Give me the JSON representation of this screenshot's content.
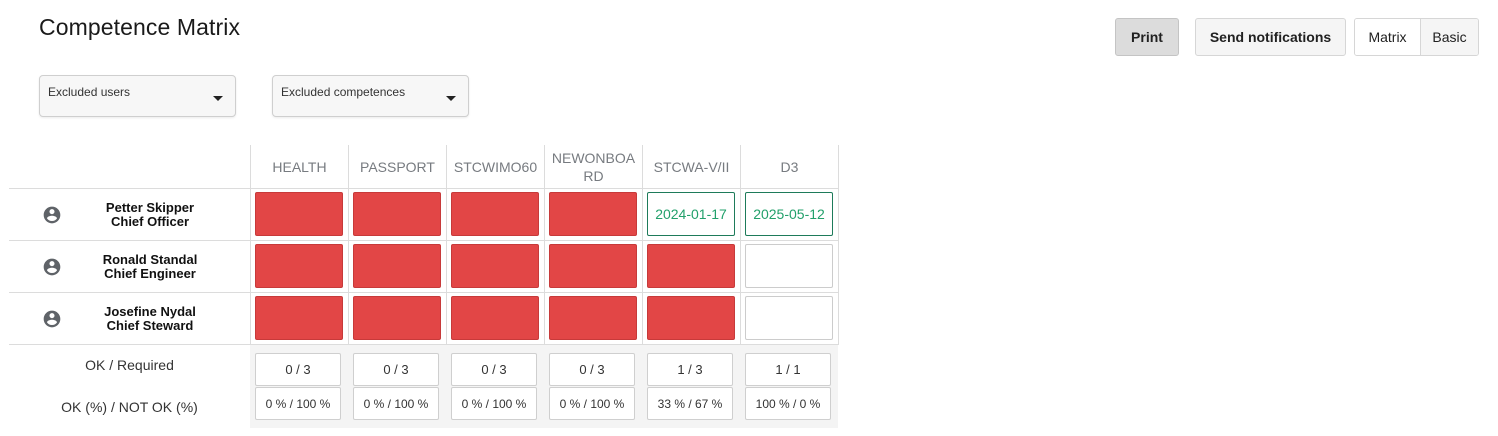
{
  "page": {
    "title": "Competence Matrix"
  },
  "toolbar": {
    "print_label": "Print",
    "send_label": "Send notifications",
    "view_matrix": "Matrix",
    "view_basic": "Basic"
  },
  "filters": {
    "excluded_users": "Excluded users",
    "excluded_competences": "Excluded competences"
  },
  "columns": [
    "HEALTH",
    "PASSPORT",
    "STCWIMO60",
    "NEWONBOARD",
    "STCWA-V/II",
    "D3"
  ],
  "users": [
    {
      "name": "Petter Skipper",
      "role": "Chief Officer",
      "cells": [
        {
          "status": "missing",
          "text": ""
        },
        {
          "status": "missing",
          "text": ""
        },
        {
          "status": "missing",
          "text": ""
        },
        {
          "status": "missing",
          "text": ""
        },
        {
          "status": "ok",
          "text": "2024-01-17"
        },
        {
          "status": "ok",
          "text": "2025-05-12"
        }
      ]
    },
    {
      "name": "Ronald Standal",
      "role": "Chief Engineer",
      "cells": [
        {
          "status": "missing",
          "text": ""
        },
        {
          "status": "missing",
          "text": ""
        },
        {
          "status": "missing",
          "text": ""
        },
        {
          "status": "missing",
          "text": ""
        },
        {
          "status": "missing",
          "text": ""
        },
        {
          "status": "not_required",
          "text": ""
        }
      ]
    },
    {
      "name": "Josefine Nydal",
      "role": "Chief Steward",
      "cells": [
        {
          "status": "missing",
          "text": ""
        },
        {
          "status": "missing",
          "text": ""
        },
        {
          "status": "missing",
          "text": ""
        },
        {
          "status": "missing",
          "text": ""
        },
        {
          "status": "missing",
          "text": ""
        },
        {
          "status": "not_required",
          "text": ""
        }
      ]
    }
  ],
  "summary": {
    "ok_required_label": "OK / Required",
    "pct_label": "OK (%) / NOT OK (%)",
    "ok_required": [
      "0 / 3",
      "0 / 3",
      "0 / 3",
      "0 / 3",
      "1 / 3",
      "1 / 1"
    ],
    "pct": [
      "0 % / 100 %",
      "0 % / 100 %",
      "0 % / 100 %",
      "0 % / 100 %",
      "33 % / 67 %",
      "100 % / 0 %"
    ]
  },
  "colors": {
    "missing": "#e24646",
    "ok_border": "#1e7b5a",
    "ok_text": "#22a06b"
  },
  "icons": {
    "user": "account-circle-icon",
    "dropdown": "caret-down-icon"
  }
}
